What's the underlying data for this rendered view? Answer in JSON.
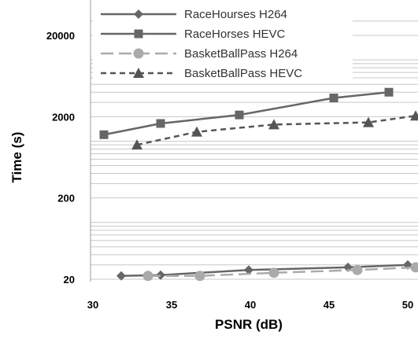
{
  "chart_data": {
    "type": "line",
    "title": "",
    "xlabel": "PSNR (dB)",
    "ylabel": "Time (s)",
    "xlim": [
      30,
      50
    ],
    "ylim": [
      20,
      30000
    ],
    "yscale": "log",
    "x_ticks": [
      "30",
      "35",
      "40",
      "45",
      "50"
    ],
    "y_ticks": [
      "20",
      "200",
      "2000",
      "20000"
    ],
    "grid": "horizontal minor log gridlines",
    "legend_position": "top-left",
    "series": [
      {
        "name": "RaceHourses H264",
        "color": "#666666",
        "line": "solid",
        "marker": "diamond",
        "x": [
          31.8,
          34.3,
          39.9,
          46.2,
          50.0
        ],
        "y": [
          22,
          22.5,
          26,
          28,
          30
        ]
      },
      {
        "name": "RaceHorses HEVC",
        "color": "#666666",
        "line": "solid",
        "marker": "square",
        "x": [
          30.7,
          34.3,
          39.3,
          45.3,
          48.8
        ],
        "y": [
          1200,
          1650,
          2100,
          3400,
          4000
        ]
      },
      {
        "name": "BasketBallPass H264",
        "color": "#aaaaaa",
        "line": "dash",
        "marker": "circle",
        "x": [
          33.5,
          36.8,
          41.5,
          46.8,
          50.5
        ],
        "y": [
          22,
          22,
          24,
          26,
          28
        ]
      },
      {
        "name": "BasketBallPass HEVC",
        "color": "#555555",
        "line": "shortdash",
        "marker": "triangle",
        "x": [
          32.8,
          36.6,
          41.5,
          47.5,
          50.5
        ],
        "y": [
          900,
          1300,
          1600,
          1700,
          2050
        ]
      }
    ]
  }
}
